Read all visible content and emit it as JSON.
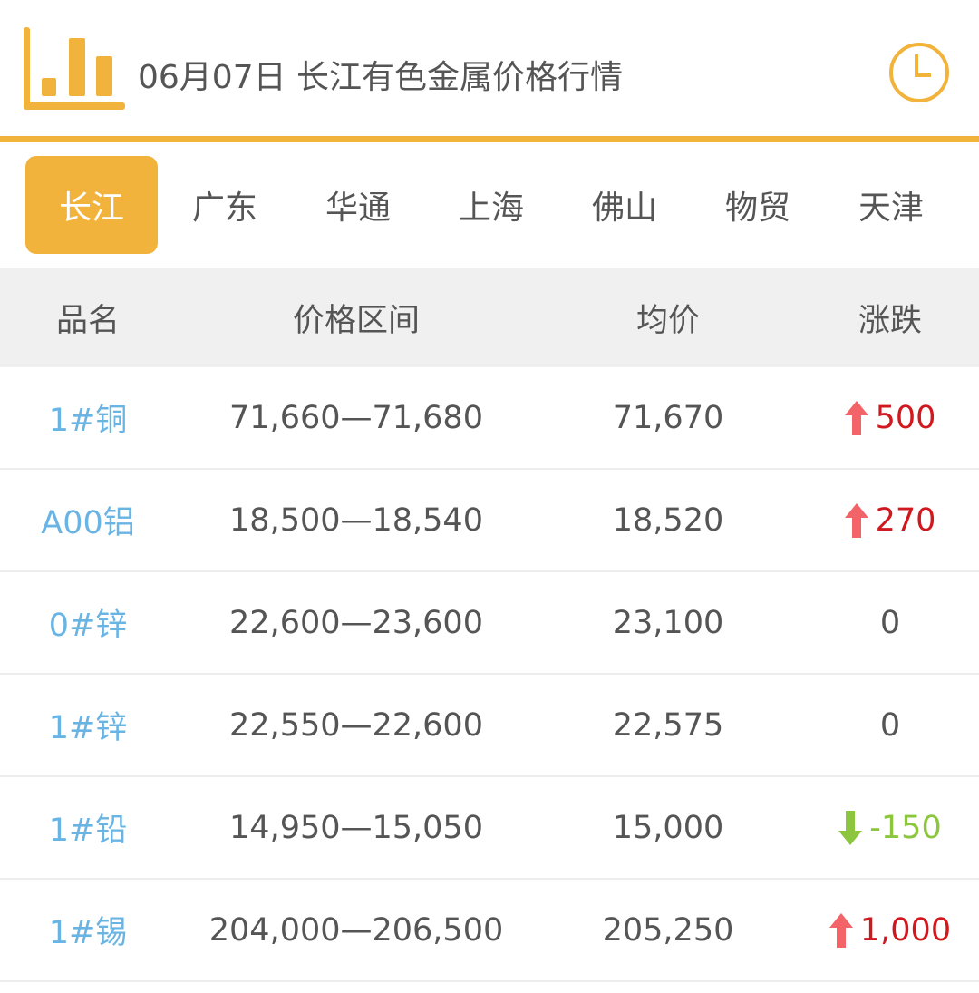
{
  "header": {
    "title": "06月07日 长江有色金属价格行情",
    "logo_icon": "bar-chart-icon",
    "history_icon": "clock-icon",
    "accent": "#f2b33d"
  },
  "tabs": [
    {
      "label": "长江",
      "active": true
    },
    {
      "label": "广东"
    },
    {
      "label": "华通"
    },
    {
      "label": "上海"
    },
    {
      "label": "佛山"
    },
    {
      "label": "物贸"
    },
    {
      "label": "天津"
    }
  ],
  "table": {
    "columns": [
      "品名",
      "价格区间",
      "均价",
      "涨跌"
    ],
    "rows": [
      {
        "name": "1#铜",
        "range": "71,660—71,680",
        "avg": "71,670",
        "change": "500",
        "trend": "up"
      },
      {
        "name": "A00铝",
        "range": "18,500—18,540",
        "avg": "18,520",
        "change": "270",
        "trend": "up"
      },
      {
        "name": "0#锌",
        "range": "22,600—23,600",
        "avg": "23,100",
        "change": "0",
        "trend": "flat"
      },
      {
        "name": "1#锌",
        "range": "22,550—22,600",
        "avg": "22,575",
        "change": "0",
        "trend": "flat"
      },
      {
        "name": "1#铅",
        "range": "14,950—15,050",
        "avg": "15,000",
        "change": "-150",
        "trend": "down"
      },
      {
        "name": "1#锡",
        "range": "204,000—206,500",
        "avg": "205,250",
        "change": "1,000",
        "trend": "up"
      }
    ],
    "colors": {
      "up": "#d0181e",
      "down": "#8cc63f",
      "name": "#6ab4e4"
    }
  }
}
